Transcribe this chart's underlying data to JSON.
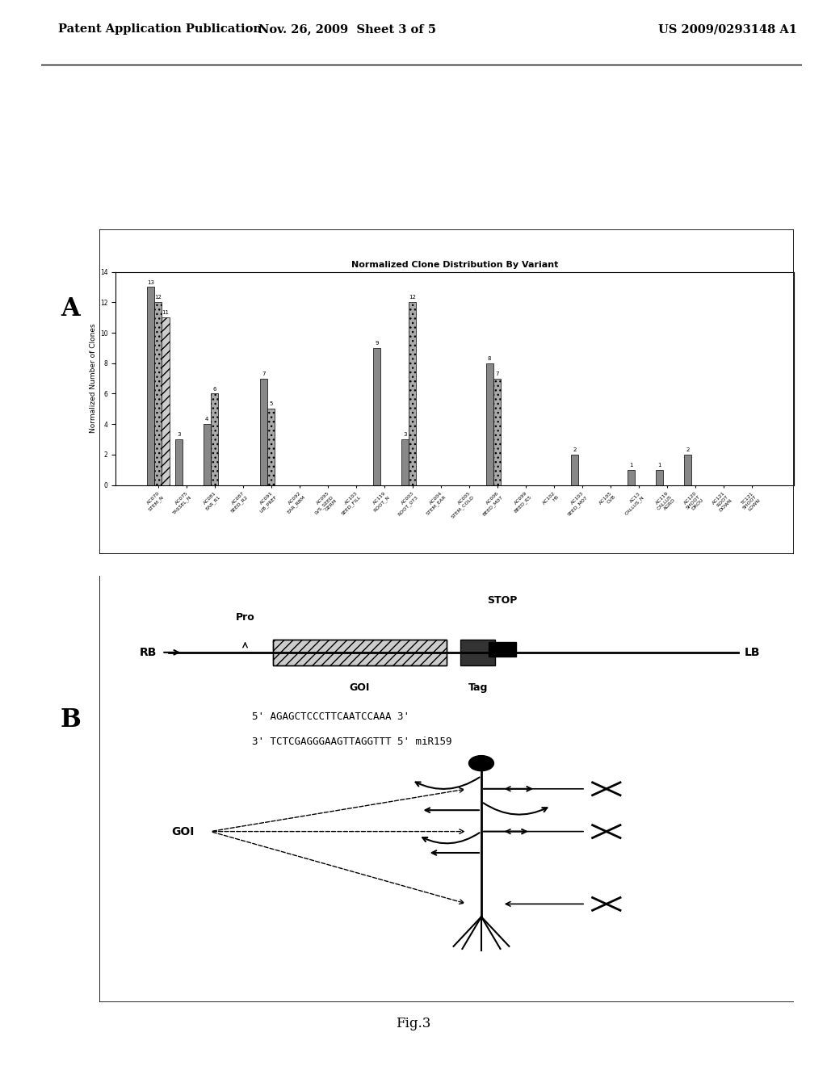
{
  "header_left": "Patent Application Publication",
  "header_mid": "Nov. 26, 2009  Sheet 3 of 5",
  "header_right": "US 2009/0293148 A1",
  "panel_a_label": "A",
  "panel_b_label": "B",
  "chart_title": "Normalized Clone Distribution By Variant",
  "chart_ylabel": "Normalized Number of Clones",
  "bar_categories": [
    "AC070\nSTEM_N",
    "AC075\nTASSEL_N",
    "AC081\nEAR_R1",
    "AC087\nSEED_R2",
    "AC091\nLIB_PREF",
    "AC092\nEAR_RBM",
    "AC095\nLVS_SEED_GERM",
    "AC103\nSEED_FILL",
    "AC119\nROOT_N",
    "AC003\nROOT_073",
    "AC004\nSTEM_EAR",
    "AC005\nSTEM_COLD",
    "AC006\nBEED_M07",
    "AC099\nBEED_R5",
    "AC102\nH5",
    "AC103\nSEED_M07",
    "AC105\nCVB",
    "AC13\nCALLUS_N",
    "AC119\nCALLUS_AGRO",
    "AC120\nSHOOT_DROU",
    "AC121\nROOT_DOWN",
    "TC121\nSHOOT_LOWN"
  ],
  "bar_values_series1": [
    13,
    3,
    4,
    0,
    7,
    0,
    0,
    0,
    9,
    3,
    0,
    0,
    8,
    0,
    0,
    2,
    0,
    1,
    1,
    2,
    0,
    0
  ],
  "bar_values_series2": [
    12,
    0,
    6,
    0,
    5,
    0,
    0,
    0,
    0,
    12,
    0,
    0,
    7,
    0,
    0,
    0,
    0,
    0,
    0,
    0,
    0,
    0
  ],
  "bar_values_series3": [
    11,
    0,
    0,
    0,
    0,
    0,
    0,
    0,
    0,
    0,
    0,
    0,
    0,
    0,
    0,
    0,
    0,
    0,
    0,
    0,
    0,
    0
  ],
  "fig_caption": "Fig.3",
  "seq_line1": "5' AGAGCTCCCTTCAATCCAAA 3'",
  "seq_line2": "3' TCTCGAGGGAAGTTAGGTTT 5' miR159",
  "construct_labels": [
    "RB",
    "Pro",
    "STOP",
    "GOI",
    "Tag",
    "LB"
  ],
  "goi_label": "GOI",
  "background_color": "#ffffff",
  "bar_colors": [
    "#888888",
    "#aaaaaa",
    "#cccccc"
  ],
  "text_color": "#000000"
}
